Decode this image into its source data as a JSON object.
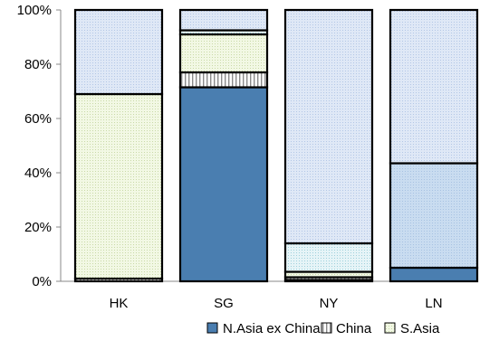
{
  "chart_data": {
    "type": "bar",
    "stacked": true,
    "normalized": true,
    "categories": [
      "HK",
      "SG",
      "NY",
      "LN"
    ],
    "ylim": [
      0,
      100
    ],
    "y_ticks": [
      "0%",
      "20%",
      "40%",
      "60%",
      "80%",
      "100%"
    ],
    "y_tick_values": [
      0,
      20,
      40,
      60,
      80,
      100
    ],
    "grid": false,
    "legend_position": "bottom",
    "series": [
      {
        "name": "N.Asia ex China",
        "color": "#4a7eb0",
        "pattern": "solid",
        "values": [
          0,
          71.5,
          0.5,
          5
        ]
      },
      {
        "name": "China",
        "color": "#bdbdbd",
        "pattern": "vertical",
        "values": [
          1,
          5.5,
          1,
          0
        ]
      },
      {
        "name": "S.Asia",
        "color": "#eef4dc",
        "pattern": "dots",
        "values": [
          68,
          14,
          2,
          0
        ]
      },
      {
        "name": "",
        "color": "#e8f4f6",
        "pattern": "dots",
        "values": [
          0,
          1.5,
          10.5,
          38.5
        ]
      },
      {
        "name": "",
        "color": "#d9e5f5",
        "pattern": "dots",
        "values": [
          31,
          7.5,
          86,
          56.5
        ]
      }
    ]
  }
}
